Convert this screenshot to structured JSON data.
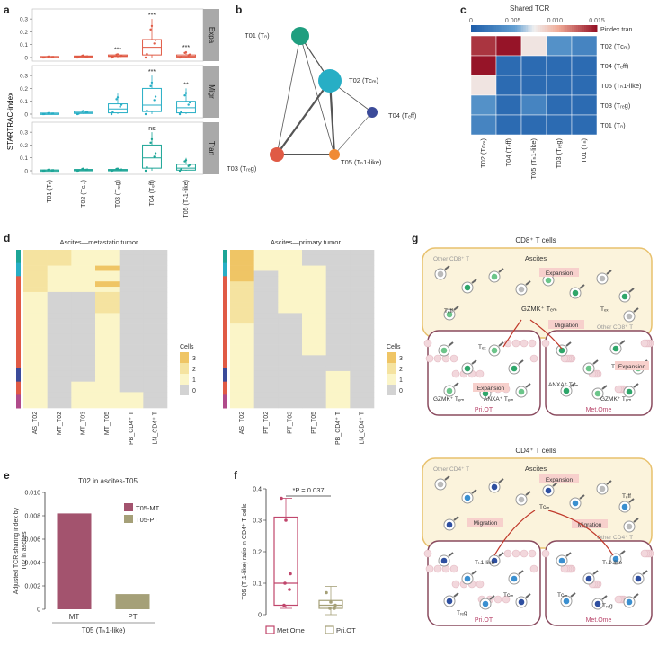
{
  "panel_labels": {
    "a": "a",
    "b": "b",
    "c": "c",
    "d": "d",
    "e": "e",
    "f": "f",
    "g": "g"
  },
  "panel_a": {
    "ylabel": "STARTRAC-index",
    "categories": [
      "T01 (Tₙ)",
      "T02 (Tᴄₘ)",
      "T03 (Tᵣₑg)",
      "T04 (Tₑff)",
      "T05 (Tₕ1-like)"
    ],
    "facets": [
      {
        "name": "Expa",
        "color": "#e05a45",
        "yticks": [
          "0",
          "0.1",
          "0.2",
          "0.3"
        ],
        "ymax": 0.35,
        "stars": [
          "",
          "",
          "***",
          "***",
          "***"
        ],
        "boxes": [
          {
            "q1": 0.003,
            "med": 0.005,
            "q3": 0.008,
            "lo": 0,
            "hi": 0.01
          },
          {
            "q1": 0.004,
            "med": 0.008,
            "q3": 0.012,
            "lo": 0,
            "hi": 0.02
          },
          {
            "q1": 0.008,
            "med": 0.012,
            "q3": 0.02,
            "lo": 0,
            "hi": 0.03
          },
          {
            "q1": 0.02,
            "med": 0.08,
            "q3": 0.14,
            "lo": 0.0,
            "hi": 0.3
          },
          {
            "q1": 0.004,
            "med": 0.01,
            "q3": 0.02,
            "lo": 0,
            "hi": 0.05
          }
        ]
      },
      {
        "name": "Migr",
        "color": "#27aec5",
        "yticks": [
          "0",
          "0.1",
          "0.2",
          "0.3"
        ],
        "ymax": 0.35,
        "stars": [
          "",
          "",
          "",
          "***",
          "**"
        ],
        "boxes": [
          {
            "q1": 0.003,
            "med": 0.005,
            "q3": 0.008,
            "lo": 0,
            "hi": 0.01
          },
          {
            "q1": 0.005,
            "med": 0.01,
            "q3": 0.02,
            "lo": 0,
            "hi": 0.03
          },
          {
            "q1": 0.01,
            "med": 0.04,
            "q3": 0.08,
            "lo": 0,
            "hi": 0.16
          },
          {
            "q1": 0.02,
            "med": 0.07,
            "q3": 0.2,
            "lo": 0,
            "hi": 0.3
          },
          {
            "q1": 0.01,
            "med": 0.05,
            "q3": 0.1,
            "lo": 0,
            "hi": 0.2
          }
        ]
      },
      {
        "name": "Tran",
        "color": "#1ca596",
        "yticks": [
          "0",
          "0.1",
          "0.2",
          "0.3"
        ],
        "ymax": 0.35,
        "stars": [
          "",
          "",
          "",
          "ns",
          ""
        ],
        "boxes": [
          {
            "q1": 0.002,
            "med": 0.004,
            "q3": 0.006,
            "lo": 0,
            "hi": 0.01
          },
          {
            "q1": 0.003,
            "med": 0.006,
            "q3": 0.01,
            "lo": 0,
            "hi": 0.02
          },
          {
            "q1": 0.003,
            "med": 0.006,
            "q3": 0.01,
            "lo": 0,
            "hi": 0.02
          },
          {
            "q1": 0.02,
            "med": 0.1,
            "q3": 0.2,
            "lo": 0,
            "hi": 0.3
          },
          {
            "q1": 0.005,
            "med": 0.02,
            "q3": 0.05,
            "lo": 0,
            "hi": 0.1
          }
        ]
      }
    ]
  },
  "panel_b": {
    "nodes": [
      {
        "id": "T01",
        "label": "T01 (Tₙ)",
        "color": "#1f9e7f"
      },
      {
        "id": "T02",
        "label": "T02 (Tᴄₘ)",
        "color": "#27aec5"
      },
      {
        "id": "T04",
        "label": "T04 (Tₑff)",
        "color": "#3b4a99"
      },
      {
        "id": "T03",
        "label": "T03 (Tᵣₑg)",
        "color": "#e05a45"
      },
      {
        "id": "T05",
        "label": "T05 (Tₕ1-like)",
        "color": "#f08a35"
      }
    ]
  },
  "panel_c": {
    "title": "Shared TCR",
    "legend_ticks": [
      "0",
      "0.005",
      "0.010",
      "0.015"
    ],
    "legend_label": "Pindex.tran",
    "rows": [
      "T02 (Tᴄₘ)",
      "T04 (Tₑff)",
      "T05 (Tₕ1-like)",
      "T03 (Tᵣₑg)",
      "T01 (Tₙ)"
    ],
    "cols": [
      "T02 (Tᴄₘ)",
      "T04 (Tₑff)",
      "T05 (Tₕ1-like)",
      "T03 (Tᵣₑg)",
      "T01 (Tₙ)"
    ],
    "values": [
      [
        0.014,
        0.015,
        0.008,
        0.004,
        0.003
      ],
      [
        0.015,
        0.001,
        0.001,
        0.001,
        0.001
      ],
      [
        0.008,
        0.001,
        0.001,
        0.001,
        0.001
      ],
      [
        0.004,
        0.001,
        0.003,
        0.001,
        0.001
      ],
      [
        0.003,
        0.001,
        0.001,
        0.001,
        0.001
      ]
    ]
  },
  "panel_d": {
    "left_title": "Ascites—metastatic tumor",
    "right_title": "Ascites—primary tumor",
    "left_cols": [
      "AS_T02",
      "MT_T02",
      "MT_T03",
      "MT_T05",
      "PB_CD4⁺ T",
      "LN_CD4⁺ T"
    ],
    "right_cols": [
      "AS_T02",
      "PT_T02",
      "PT_T03",
      "PT_T05",
      "PB_CD4⁺ T",
      "LN_CD4⁺ T"
    ],
    "legend_title": "Cells",
    "legend_ticks": [
      "3",
      "2",
      "1",
      "0"
    ]
  },
  "panel_e": {
    "title": "T02 in ascites-T05",
    "ylabel": "Adjusted TCR sharing index by T02 in ascites",
    "xlabel": "T05 (Tₕ1-like)",
    "yticks": [
      "0",
      "0.002",
      "0.004",
      "0.006",
      "0.008",
      "0.010"
    ],
    "ymax": 0.01,
    "legend": [
      {
        "name": "T05-MT",
        "color": "#a3536e"
      },
      {
        "name": "T05-PT",
        "color": "#a5a078"
      }
    ],
    "categories": [
      "MT",
      "PT"
    ]
  },
  "panel_f": {
    "ylabel": "T05 (Tₕ1-like) ratio in CD4⁺ T cells",
    "yticks": [
      "0",
      "0.1",
      "0.2",
      "0.3",
      "0.4"
    ],
    "pvalue": "*P = 0.037",
    "legend": [
      {
        "name": "Met.Ome",
        "color": "#c0466c"
      },
      {
        "name": "Pri.OT",
        "color": "#a5a078"
      }
    ]
  },
  "panel_g": {
    "cd8": {
      "title": "CD8⁺ T cells",
      "ascites": "Ascites",
      "other": [
        "Other CD8⁺ T",
        "Other CD8⁺ T"
      ],
      "expansion": "Expansion",
      "migration": "Migration",
      "tems": [
        "Tₑff",
        "GZMK⁺ Tₑₘ",
        "Tₑₓ"
      ],
      "pri_label": "Pri.OT",
      "met_label": "Met.Ome",
      "pri_texts": [
        "Tₑₓ",
        "GZMK⁺ Tₑₘ",
        "ANXA⁺ Tₑₘ",
        "Expansion"
      ],
      "met_texts": [
        "Tₑₓ",
        "ANXA⁺ Tₑₘ",
        "GZMK⁺ Tₑₘ",
        "Expansion"
      ]
    },
    "cd4": {
      "title": "CD4⁺ T cells",
      "ascites": "Ascites",
      "other": [
        "Other CD4⁺ T",
        "Other CD4⁺ T"
      ],
      "expansion": "Expansion",
      "migration": [
        "Migration",
        "Migration"
      ],
      "asc_texts": [
        "Tᴄₘ",
        "Tₑff"
      ],
      "pri_label": "Pri.OT",
      "met_label": "Met.Ome",
      "pri_texts": [
        "Tₕ1-like",
        "Tᴄₘ",
        "Tᵣₑg"
      ],
      "met_texts": [
        "Tₕ1-like",
        "Tᴄₘ",
        "Tᵣₑg"
      ]
    }
  },
  "chart_data": [
    {
      "type": "bar",
      "title": "T02 in ascites-T05",
      "categories": [
        "MT",
        "PT"
      ],
      "values": [
        0.0082,
        0.0013
      ],
      "ylabel": "Adjusted TCR sharing index by T02 in ascites",
      "xlabel": "T05 (Tₕ1-like)",
      "ylim": [
        0,
        0.01
      ],
      "series": [
        {
          "name": "T05-MT",
          "values": [
            0.0082,
            null
          ]
        },
        {
          "name": "T05-PT",
          "values": [
            null,
            0.0013
          ]
        }
      ]
    },
    {
      "type": "heatmap",
      "title": "Shared TCR",
      "rows": [
        "T02 (Tᴄₘ)",
        "T04 (Tₑff)",
        "T05 (Tₕ1-like)",
        "T03 (Tᵣₑg)",
        "T01 (Tₙ)"
      ],
      "cols": [
        "T02 (Tᴄₘ)",
        "T04 (Tₑff)",
        "T05 (Tₕ1-like)",
        "T03 (Tᵣₑg)",
        "T01 (Tₙ)"
      ],
      "values": [
        [
          0.014,
          0.015,
          0.008,
          0.004,
          0.003
        ],
        [
          0.015,
          0.001,
          0.001,
          0.001,
          0.001
        ],
        [
          0.008,
          0.001,
          0.001,
          0.001,
          0.001
        ],
        [
          0.004,
          0.001,
          0.003,
          0.001,
          0.001
        ],
        [
          0.003,
          0.001,
          0.001,
          0.001,
          0.001
        ]
      ],
      "legend_label": "Pindex.tran",
      "range": [
        0,
        0.015
      ]
    },
    {
      "type": "box",
      "ylabel": "T05 (Tₕ1-like) ratio in CD4⁺ T cells",
      "ylim": [
        0,
        0.4
      ],
      "categories": [
        "Met.Ome",
        "Pri.OT"
      ],
      "boxes": [
        {
          "q1": 0.03,
          "med": 0.1,
          "q3": 0.31,
          "lo": 0.02,
          "hi": 0.37
        },
        {
          "q1": 0.02,
          "med": 0.03,
          "q3": 0.045,
          "lo": 0.0,
          "hi": 0.09
        }
      ],
      "points": [
        [
          0.37,
          0.3,
          0.13,
          0.1,
          0.08,
          0.03
        ],
        [
          0.07,
          0.04,
          0.03,
          0.02,
          0.02
        ]
      ]
    }
  ]
}
